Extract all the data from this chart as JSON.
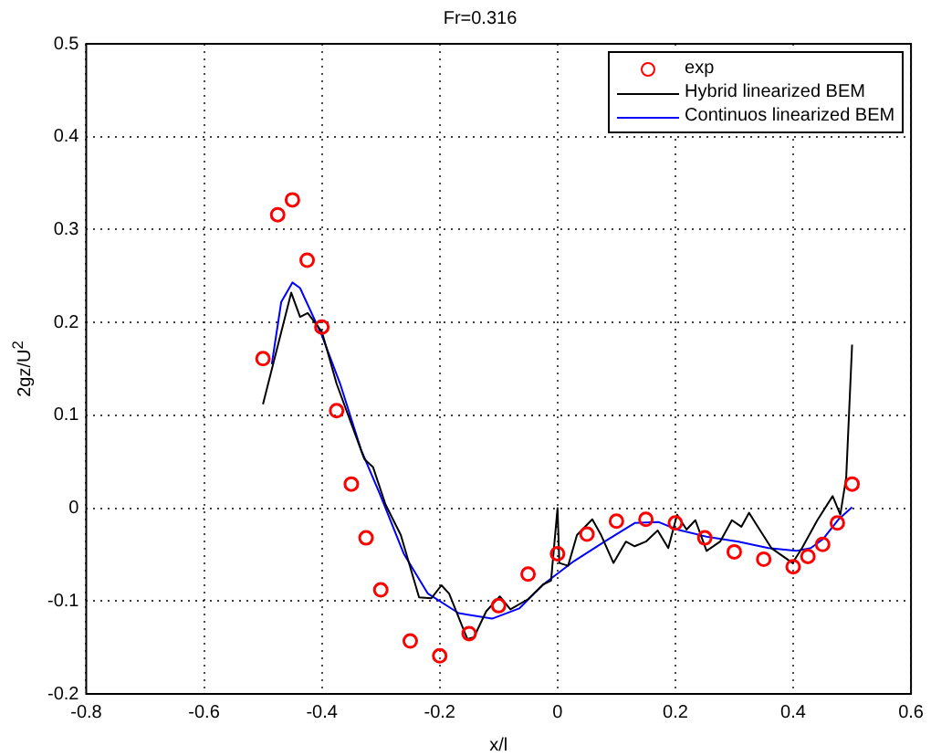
{
  "chart_data": {
    "type": "line",
    "title": "Fr=0.316",
    "xlabel": "x/l",
    "ylabel": "2gz/U$^{2}$",
    "xlim": [
      -0.8,
      0.6
    ],
    "xticks": [
      -0.8,
      -0.6,
      -0.4,
      -0.2,
      0,
      0.2,
      0.4,
      0.6
    ],
    "ylim": [
      -0.2,
      0.5
    ],
    "yticks": [
      -0.2,
      -0.1,
      0,
      0.1,
      0.2,
      0.3,
      0.4,
      0.5
    ],
    "grid": true,
    "legend": "top right",
    "line_style": "solid",
    "series": [
      {
        "name": "exp",
        "type": "scatter",
        "marker": "circle",
        "color": "#ff0000",
        "x": [
          -0.5,
          -0.475,
          -0.45,
          -0.425,
          -0.4,
          -0.375,
          -0.35,
          -0.325,
          -0.3,
          -0.25,
          -0.2,
          -0.15,
          -0.1,
          -0.05,
          0,
          0.05,
          0.1,
          0.15,
          0.2,
          0.25,
          0.3,
          0.35,
          0.4,
          0.425,
          0.45,
          0.475,
          0.5
        ],
        "values": [
          0.161,
          0.316,
          0.332,
          0.267,
          0.195,
          0.105,
          0.026,
          -0.032,
          -0.088,
          -0.143,
          -0.159,
          -0.135,
          -0.105,
          -0.071,
          -0.049,
          -0.028,
          -0.014,
          -0.012,
          -0.016,
          -0.032,
          -0.047,
          -0.055,
          -0.063,
          -0.052,
          -0.039,
          -0.016,
          0.026
        ]
      },
      {
        "name": "Hybrid linearized BEM",
        "marker": "none",
        "color": "#000000",
        "x": [
          -0.5,
          -0.452,
          -0.437,
          -0.424,
          -0.4,
          -0.375,
          -0.328,
          -0.313,
          -0.292,
          -0.266,
          -0.235,
          -0.214,
          -0.197,
          -0.184,
          -0.153,
          -0.142,
          -0.121,
          -0.098,
          -0.08,
          -0.05,
          -0.024,
          -0.011,
          0,
          0.003,
          0.018,
          0.033,
          0.059,
          0.074,
          0.095,
          0.116,
          0.131,
          0.15,
          0.17,
          0.188,
          0.203,
          0.219,
          0.234,
          0.253,
          0.276,
          0.296,
          0.312,
          0.325,
          0.343,
          0.363,
          0.399,
          0.415,
          0.441,
          0.467,
          0.48,
          0.49,
          0.5
        ],
        "values": [
          0.112,
          0.232,
          0.206,
          0.21,
          0.19,
          0.134,
          0.053,
          0.044,
          0.004,
          -0.029,
          -0.096,
          -0.097,
          -0.083,
          -0.092,
          -0.141,
          -0.139,
          -0.111,
          -0.095,
          -0.109,
          -0.098,
          -0.082,
          -0.078,
          0.0,
          -0.059,
          -0.062,
          -0.029,
          -0.012,
          -0.029,
          -0.059,
          -0.036,
          -0.041,
          -0.036,
          -0.024,
          -0.043,
          -0.007,
          -0.023,
          -0.013,
          -0.046,
          -0.036,
          -0.013,
          -0.02,
          -0.005,
          -0.023,
          -0.043,
          -0.059,
          -0.043,
          -0.013,
          0.013,
          -0.007,
          0.033,
          0.176
        ]
      },
      {
        "name": "Continuos linearized BEM",
        "marker": "none",
        "color": "#0000ff",
        "x": [
          -0.485,
          -0.469,
          -0.45,
          -0.437,
          -0.4,
          -0.369,
          -0.333,
          -0.302,
          -0.261,
          -0.22,
          -0.168,
          -0.111,
          -0.065,
          -0.024,
          0.028,
          0.08,
          0.131,
          0.172,
          0.203,
          0.255,
          0.307,
          0.358,
          0.405,
          0.43,
          0.451,
          0.477,
          0.5
        ],
        "values": [
          0.155,
          0.222,
          0.243,
          0.237,
          0.186,
          0.134,
          0.062,
          0.016,
          -0.049,
          -0.092,
          -0.113,
          -0.119,
          -0.108,
          -0.082,
          -0.057,
          -0.036,
          -0.016,
          -0.015,
          -0.023,
          -0.031,
          -0.036,
          -0.043,
          -0.046,
          -0.043,
          -0.033,
          -0.012,
          0.001
        ]
      }
    ]
  }
}
